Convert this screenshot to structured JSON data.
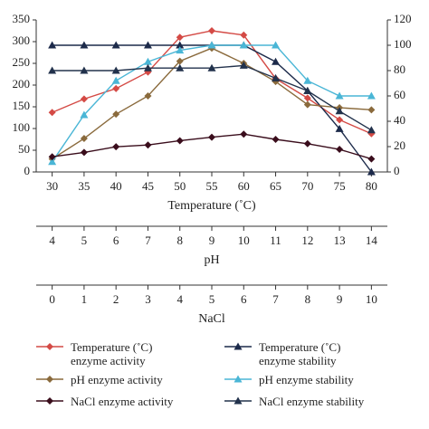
{
  "chart_data": {
    "type": "line",
    "xlabel": "Temperature (˚C)",
    "x": [
      30,
      35,
      40,
      45,
      50,
      55,
      60,
      65,
      70,
      75,
      80
    ],
    "xlim": [
      27.5,
      82.5
    ],
    "xticks": [
      30,
      35,
      40,
      45,
      50,
      55,
      60,
      65,
      70,
      75,
      80
    ],
    "x2label": "pH",
    "x2lim": [
      3.5,
      14.5
    ],
    "x2ticks": [
      4,
      5,
      6,
      7,
      8,
      9,
      10,
      11,
      12,
      13,
      14
    ],
    "x3label": "NaCl",
    "x3lim": [
      -0.5,
      10.5
    ],
    "x3ticks": [
      0,
      1,
      2,
      3,
      4,
      5,
      6,
      7,
      8,
      9,
      10
    ],
    "ylim": [
      0,
      350
    ],
    "yticks": [
      0,
      50,
      100,
      150,
      200,
      250,
      300,
      350
    ],
    "y2lim": [
      0,
      120
    ],
    "y2ticks": [
      0,
      20,
      40,
      60,
      80,
      100,
      120
    ],
    "series": [
      {
        "name": "Temperature (˚C) enzyme activity",
        "color": "#d44a45",
        "marker": "diamond",
        "values": [
          137,
          168,
          192,
          230,
          310,
          325,
          315,
          215,
          170,
          120,
          88
        ]
      },
      {
        "name": "Temperature (˚C) enzyme stability",
        "color": "#1c2a4a",
        "marker": "triangle",
        "axis": "y2",
        "values": [
          100,
          100,
          100,
          100,
          100,
          100,
          100,
          87,
          64,
          34,
          0
        ]
      },
      {
        "name": "pH enzyme activity",
        "color": "#8a6a3c",
        "marker": "diamond",
        "values": [
          30,
          77,
          133,
          175,
          255,
          285,
          250,
          208,
          155,
          148,
          143
        ]
      },
      {
        "name": "pH enzyme stability",
        "color": "#4ab6d6",
        "marker": "triangle",
        "axis": "y2",
        "values": [
          8,
          45,
          72,
          87,
          96,
          100,
          100,
          100,
          72,
          60,
          60
        ]
      },
      {
        "name": "NaCl enzyme activity",
        "color": "#3a0d1c",
        "marker": "diamond",
        "values": [
          35,
          45,
          58,
          62,
          72,
          80,
          87,
          75,
          65,
          52,
          30
        ]
      },
      {
        "name": "NaCl enzyme stability",
        "color": "#22324c",
        "marker": "triangle",
        "axis": "y2",
        "values": [
          80,
          80,
          80,
          82,
          82,
          82,
          84,
          74,
          64,
          48,
          33
        ]
      }
    ]
  }
}
